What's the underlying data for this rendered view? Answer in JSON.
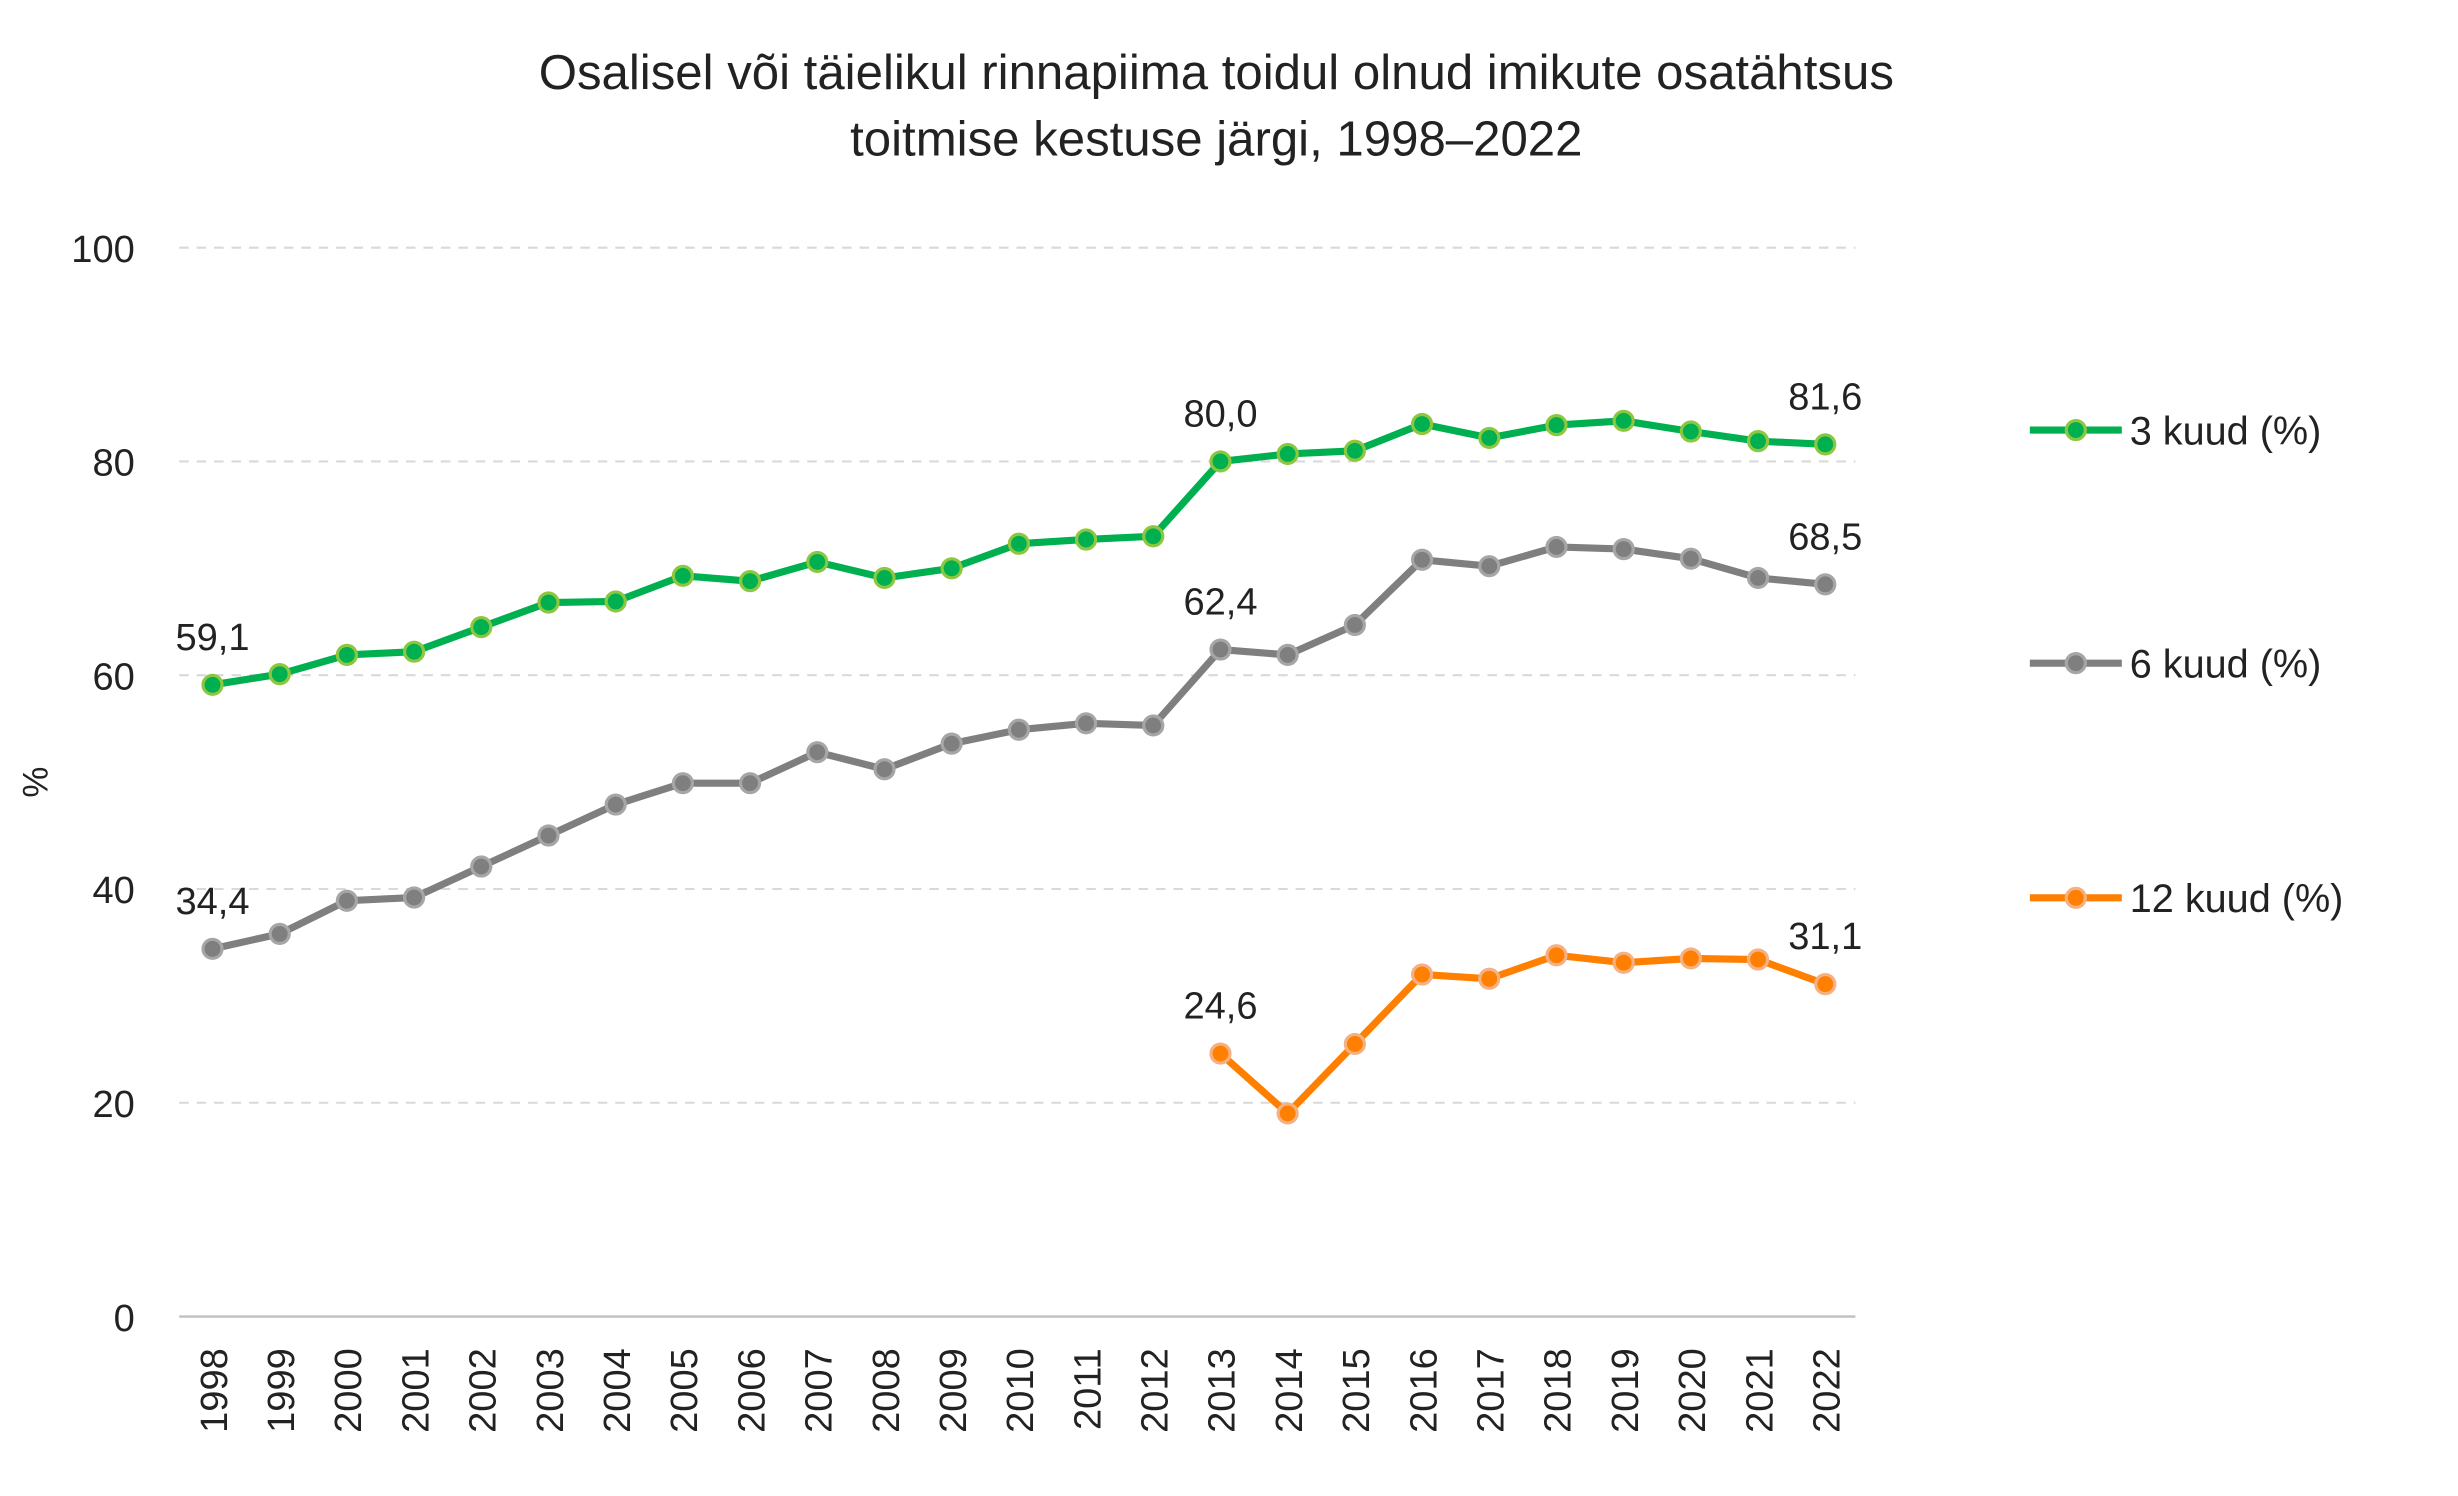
{
  "chart_data": {
    "type": "line",
    "title": "Osalisel või täielikul rinnapiima toidul olnud imikute osatähtsus",
    "subtitle": "toitmise kestuse järgi, 1998–2022",
    "xlabel": "",
    "ylabel": "%",
    "ylim": [
      0,
      100
    ],
    "yticks": [
      "0",
      "20",
      "40",
      "60",
      "80",
      "100"
    ],
    "grid": true,
    "legend_position": "right",
    "x": [
      "1998",
      "1999",
      "2000",
      "2001",
      "2002",
      "2003",
      "2004",
      "2005",
      "2006",
      "2007",
      "2008",
      "2009",
      "2010",
      "2011",
      "2012",
      "2013",
      "2014",
      "2015",
      "2016",
      "2017",
      "2018",
      "2019",
      "2020",
      "2021",
      "2022"
    ],
    "series": [
      {
        "name": "3 kuud (%)",
        "color": "#00b050",
        "marker": "#8dc63f",
        "values": [
          59.1,
          60.1,
          61.9,
          62.2,
          64.5,
          66.8,
          66.9,
          69.3,
          68.8,
          70.6,
          69.1,
          70.0,
          72.3,
          72.7,
          73.0,
          80.0,
          80.7,
          81.0,
          83.5,
          82.2,
          83.4,
          83.8,
          82.8,
          81.9,
          81.6
        ],
        "labels": {
          "1998": "59,1",
          "2013": "80,0",
          "2022": "81,6"
        }
      },
      {
        "name": "6 kuud (%)",
        "color": "#7f7f7f",
        "marker": "#a6a6a6",
        "values": [
          34.4,
          35.8,
          38.9,
          39.2,
          42.1,
          45.0,
          47.9,
          49.9,
          49.9,
          52.8,
          51.2,
          53.6,
          54.9,
          55.5,
          55.3,
          62.4,
          61.9,
          64.7,
          70.8,
          70.2,
          72.0,
          71.8,
          70.9,
          69.1,
          68.5
        ],
        "labels": {
          "1998": "34,4",
          "2013": "62,4",
          "2022": "68,5"
        }
      },
      {
        "name": "12 kuud (%)",
        "color": "#ff7f00",
        "marker": "#f4b183",
        "values": [
          null,
          null,
          null,
          null,
          null,
          null,
          null,
          null,
          null,
          null,
          null,
          null,
          null,
          null,
          null,
          24.6,
          19.0,
          25.5,
          32.0,
          31.6,
          33.8,
          33.1,
          33.5,
          33.4,
          31.1
        ],
        "labels": {
          "2013": "24,6",
          "2022": "31,1"
        }
      }
    ]
  }
}
